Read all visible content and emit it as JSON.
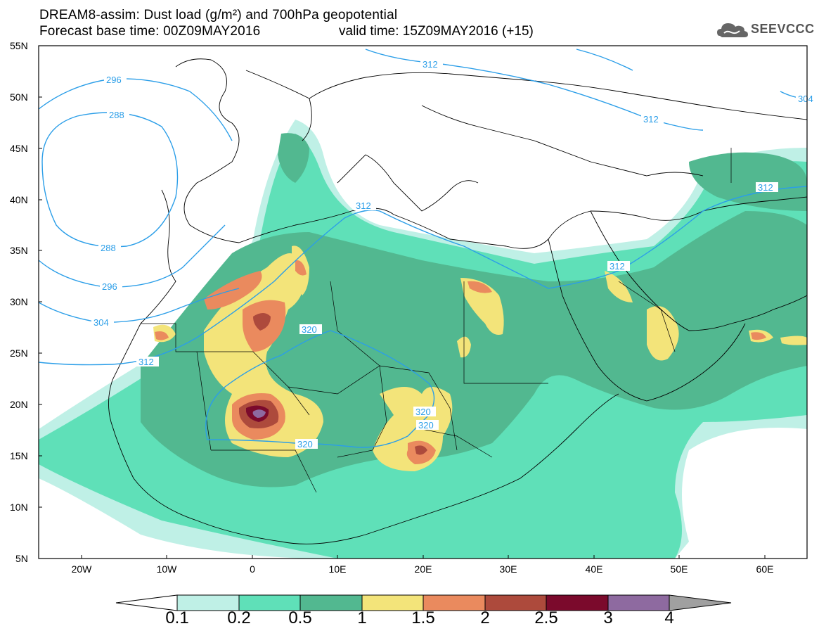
{
  "header": {
    "line1": "DREAM8-assim: Dust load (g/m²) and 700hPa geopotential",
    "line2a": "Forecast base time: 00Z09MAY2016",
    "line2b": "valid time: 15Z09MAY2016 (+15)",
    "logo": "SEEVCCC",
    "logo_icon": "cloud-icon"
  },
  "map": {
    "lon_range": [
      -25,
      65
    ],
    "lat_range": [
      5,
      55
    ],
    "lat_ticks": [
      "55N",
      "50N",
      "45N",
      "40N",
      "35N",
      "30N",
      "25N",
      "20N",
      "15N",
      "10N",
      "5N"
    ],
    "lon_ticks": [
      "20W",
      "10W",
      "0",
      "10E",
      "20E",
      "30E",
      "40E",
      "50E",
      "60E"
    ],
    "contour_labels": [
      "296",
      "288",
      "288",
      "296",
      "304",
      "312",
      "312",
      "312",
      "312",
      "312",
      "312",
      "320",
      "320",
      "320",
      "320",
      "304"
    ]
  },
  "colorbar": {
    "labels": [
      "0.1",
      "0.2",
      "0.5",
      "1",
      "1.5",
      "2",
      "2.5",
      "3",
      "4"
    ],
    "colors": [
      "#ffffff",
      "#bff0e6",
      "#5fe0b8",
      "#52b890",
      "#f3e47a",
      "#ea8a5e",
      "#ad4a3c",
      "#7b0a2c",
      "#8e6aa0",
      "#a0a0a0"
    ]
  }
}
